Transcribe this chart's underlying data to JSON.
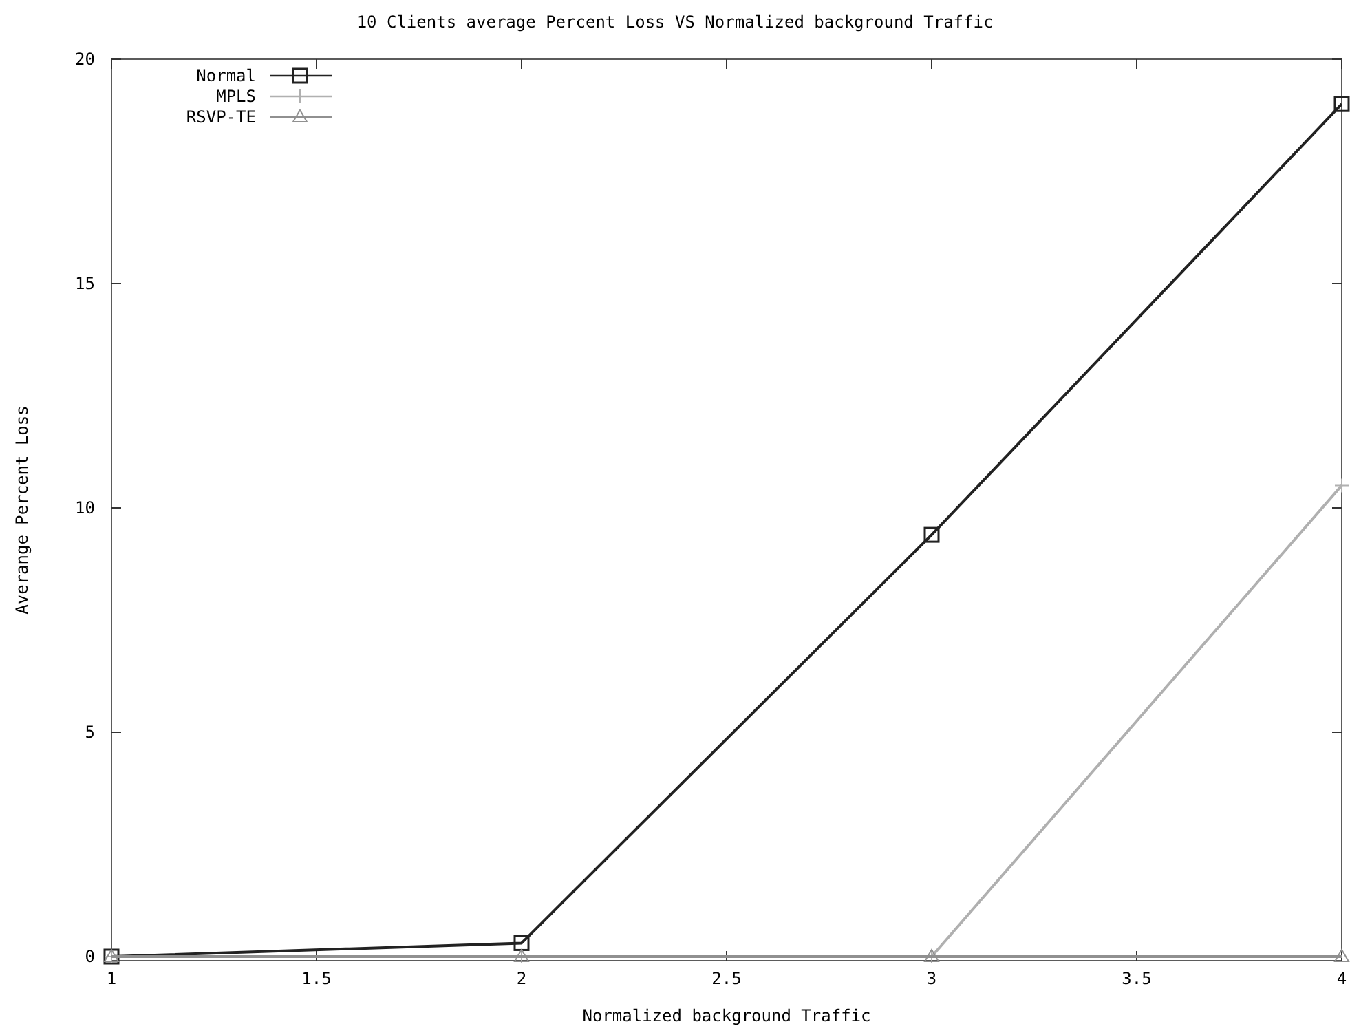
{
  "chart_data": {
    "type": "line",
    "title": "10 Clients average Percent Loss VS Normalized background Traffic",
    "xlabel": "Normalized background Traffic",
    "ylabel": "Averange Percent Loss",
    "x": [
      1,
      2,
      3,
      4
    ],
    "series": [
      {
        "name": "Normal",
        "color": "#222222",
        "values": [
          0,
          0.3,
          9.4,
          19
        ],
        "marker": "square"
      },
      {
        "name": "MPLS",
        "color": "#b0b0b0",
        "values": [
          0,
          0,
          0,
          10.5
        ],
        "marker": "cross"
      },
      {
        "name": "RSVP-TE",
        "color": "#909090",
        "values": [
          0,
          0,
          0,
          0
        ],
        "marker": "triangle"
      }
    ],
    "xlim": [
      1,
      4
    ],
    "xticks": [
      1,
      1.5,
      2,
      2.5,
      3,
      3.5,
      4
    ],
    "ylim": [
      0,
      20
    ],
    "yticks": [
      0,
      5,
      10,
      15,
      20
    ],
    "legend": "top left",
    "grid": false
  }
}
